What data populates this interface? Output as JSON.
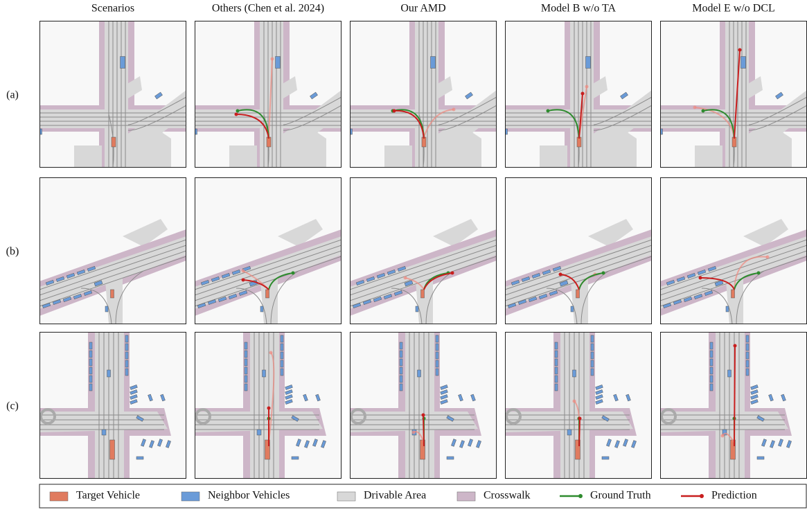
{
  "columns": [
    "Scenarios",
    "Others (Chen et al. 2024)",
    "Our AMD",
    "Model B w/o TA",
    "Model E w/o DCL"
  ],
  "rows": [
    "(a)",
    "(b)",
    "(c)"
  ],
  "legend": [
    {
      "label": "Target Vehicle",
      "color": "#e07b5f"
    },
    {
      "label": "Neighbor Vehicles",
      "color": "#6a9bd8"
    },
    {
      "label": "Drivable Area",
      "color": "#d8d8d8"
    },
    {
      "label": "Crosswalk",
      "color": "#cdb6c8"
    },
    {
      "label": "Ground Truth",
      "color": "#2e8b2e"
    },
    {
      "label": "Prediction",
      "color": "#c81e1e"
    }
  ]
}
